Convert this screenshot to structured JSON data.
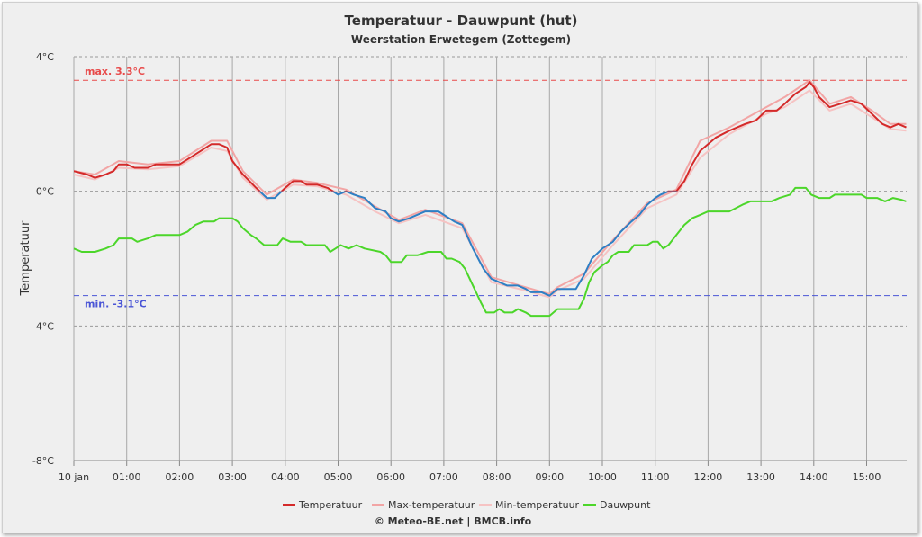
{
  "chart_data": {
    "type": "line",
    "title": "Temperatuur - Dauwpunt (hut)",
    "subtitle": "Weerstation Erwetegem (Zottegem)",
    "ylabel": "Temperatuur",
    "ylim": [
      -8,
      4
    ],
    "y_ticks": [
      "4°C",
      "0°C",
      "-4°C",
      "-8°C"
    ],
    "x_range_hours": [
      0,
      15.75
    ],
    "x_ticks": [
      "10 jan",
      "01:00",
      "02:00",
      "03:00",
      "04:00",
      "05:00",
      "06:00",
      "07:00",
      "08:00",
      "09:00",
      "10:00",
      "11:00",
      "12:00",
      "13:00",
      "14:00",
      "15:00"
    ],
    "grid": true,
    "legend_position": "bottom-center",
    "plot_lines": {
      "max": {
        "label": "max. 3.3°C",
        "value": 3.3,
        "color": "#e84a4a"
      },
      "min": {
        "label": "min. -3.1°C",
        "value": -3.1,
        "color": "#4a55d6"
      }
    },
    "series": [
      {
        "name": "Temperatuur",
        "color": "#d42a2a",
        "color_below_zero": "#2e7fc4",
        "points": [
          [
            0,
            0.6
          ],
          [
            0.25,
            0.5
          ],
          [
            0.4,
            0.4
          ],
          [
            0.6,
            0.5
          ],
          [
            0.75,
            0.6
          ],
          [
            0.85,
            0.8
          ],
          [
            1.0,
            0.8
          ],
          [
            1.15,
            0.7
          ],
          [
            1.4,
            0.7
          ],
          [
            1.55,
            0.8
          ],
          [
            2.0,
            0.8
          ],
          [
            2.2,
            1.0
          ],
          [
            2.4,
            1.2
          ],
          [
            2.6,
            1.4
          ],
          [
            2.75,
            1.4
          ],
          [
            2.9,
            1.3
          ],
          [
            3.0,
            0.9
          ],
          [
            3.2,
            0.5
          ],
          [
            3.45,
            0.1
          ],
          [
            3.65,
            -0.2
          ],
          [
            3.8,
            -0.2
          ],
          [
            4.0,
            0.1
          ],
          [
            4.15,
            0.3
          ],
          [
            4.3,
            0.3
          ],
          [
            4.4,
            0.2
          ],
          [
            4.6,
            0.2
          ],
          [
            4.8,
            0.1
          ],
          [
            5.0,
            -0.1
          ],
          [
            5.15,
            0.0
          ],
          [
            5.3,
            -0.1
          ],
          [
            5.5,
            -0.2
          ],
          [
            5.7,
            -0.5
          ],
          [
            5.9,
            -0.6
          ],
          [
            6.0,
            -0.8
          ],
          [
            6.15,
            -0.9
          ],
          [
            6.35,
            -0.8
          ],
          [
            6.65,
            -0.6
          ],
          [
            6.9,
            -0.6
          ],
          [
            7.0,
            -0.7
          ],
          [
            7.2,
            -0.9
          ],
          [
            7.35,
            -1.0
          ],
          [
            7.55,
            -1.7
          ],
          [
            7.75,
            -2.3
          ],
          [
            7.9,
            -2.6
          ],
          [
            8.05,
            -2.7
          ],
          [
            8.2,
            -2.8
          ],
          [
            8.4,
            -2.8
          ],
          [
            8.55,
            -2.9
          ],
          [
            8.65,
            -3.0
          ],
          [
            8.85,
            -3.0
          ],
          [
            9.0,
            -3.1
          ],
          [
            9.15,
            -2.9
          ],
          [
            9.5,
            -2.9
          ],
          [
            9.65,
            -2.5
          ],
          [
            9.8,
            -2.0
          ],
          [
            10.0,
            -1.7
          ],
          [
            10.2,
            -1.5
          ],
          [
            10.35,
            -1.2
          ],
          [
            10.55,
            -0.9
          ],
          [
            10.7,
            -0.7
          ],
          [
            10.85,
            -0.4
          ],
          [
            11.0,
            -0.2
          ],
          [
            11.1,
            -0.1
          ],
          [
            11.25,
            0.0
          ],
          [
            11.4,
            0.0
          ],
          [
            11.55,
            0.3
          ],
          [
            11.7,
            0.8
          ],
          [
            11.85,
            1.2
          ],
          [
            12.0,
            1.4
          ],
          [
            12.15,
            1.6
          ],
          [
            12.4,
            1.8
          ],
          [
            12.7,
            2.0
          ],
          [
            12.9,
            2.1
          ],
          [
            13.1,
            2.4
          ],
          [
            13.3,
            2.4
          ],
          [
            13.45,
            2.6
          ],
          [
            13.65,
            2.9
          ],
          [
            13.85,
            3.1
          ],
          [
            13.92,
            3.25
          ],
          [
            14.0,
            3.1
          ],
          [
            14.1,
            2.8
          ],
          [
            14.3,
            2.5
          ],
          [
            14.5,
            2.6
          ],
          [
            14.7,
            2.7
          ],
          [
            14.9,
            2.6
          ],
          [
            15.1,
            2.3
          ],
          [
            15.3,
            2.0
          ],
          [
            15.45,
            1.9
          ],
          [
            15.6,
            2.0
          ],
          [
            15.75,
            1.9
          ]
        ]
      },
      {
        "name": "Max-temperatuur",
        "color": "#f2a5a5",
        "points": [
          [
            0,
            0.6
          ],
          [
            0.4,
            0.5
          ],
          [
            0.85,
            0.9
          ],
          [
            1.4,
            0.8
          ],
          [
            2.0,
            0.9
          ],
          [
            2.6,
            1.5
          ],
          [
            2.9,
            1.5
          ],
          [
            3.2,
            0.6
          ],
          [
            3.65,
            -0.1
          ],
          [
            4.15,
            0.35
          ],
          [
            4.6,
            0.25
          ],
          [
            5.15,
            0.05
          ],
          [
            5.7,
            -0.45
          ],
          [
            6.15,
            -0.85
          ],
          [
            6.65,
            -0.55
          ],
          [
            7.35,
            -0.95
          ],
          [
            7.9,
            -2.55
          ],
          [
            8.55,
            -2.85
          ],
          [
            9.0,
            -3.05
          ],
          [
            9.15,
            -2.85
          ],
          [
            9.65,
            -2.45
          ],
          [
            10.2,
            -1.45
          ],
          [
            10.85,
            -0.35
          ],
          [
            11.4,
            0.05
          ],
          [
            11.85,
            1.5
          ],
          [
            12.4,
            1.9
          ],
          [
            13.1,
            2.5
          ],
          [
            13.45,
            2.8
          ],
          [
            13.92,
            3.3
          ],
          [
            14.3,
            2.6
          ],
          [
            14.7,
            2.8
          ],
          [
            15.1,
            2.4
          ],
          [
            15.45,
            2.0
          ],
          [
            15.75,
            2.0
          ]
        ]
      },
      {
        "name": "Min-temperatuur",
        "color": "#f6c3c3",
        "points": [
          [
            0,
            0.5
          ],
          [
            0.4,
            0.35
          ],
          [
            0.85,
            0.7
          ],
          [
            1.4,
            0.65
          ],
          [
            2.0,
            0.75
          ],
          [
            2.6,
            1.3
          ],
          [
            2.9,
            1.2
          ],
          [
            3.2,
            0.4
          ],
          [
            3.65,
            -0.25
          ],
          [
            4.15,
            0.2
          ],
          [
            4.6,
            0.15
          ],
          [
            5.15,
            -0.1
          ],
          [
            5.7,
            -0.6
          ],
          [
            6.15,
            -0.95
          ],
          [
            6.65,
            -0.7
          ],
          [
            7.35,
            -1.1
          ],
          [
            7.9,
            -2.7
          ],
          [
            8.55,
            -2.95
          ],
          [
            9.0,
            -3.15
          ],
          [
            9.15,
            -2.95
          ],
          [
            9.65,
            -2.6
          ],
          [
            10.2,
            -1.6
          ],
          [
            10.85,
            -0.5
          ],
          [
            11.4,
            -0.1
          ],
          [
            11.85,
            1.0
          ],
          [
            12.4,
            1.7
          ],
          [
            13.1,
            2.3
          ],
          [
            13.45,
            2.5
          ],
          [
            13.92,
            3.0
          ],
          [
            14.3,
            2.4
          ],
          [
            14.7,
            2.6
          ],
          [
            15.1,
            2.2
          ],
          [
            15.45,
            1.85
          ],
          [
            15.75,
            1.8
          ]
        ]
      },
      {
        "name": "Dauwpunt",
        "color": "#4cd62a",
        "points": [
          [
            0,
            -1.7
          ],
          [
            0.15,
            -1.8
          ],
          [
            0.4,
            -1.8
          ],
          [
            0.6,
            -1.7
          ],
          [
            0.75,
            -1.6
          ],
          [
            0.85,
            -1.4
          ],
          [
            1.1,
            -1.4
          ],
          [
            1.2,
            -1.5
          ],
          [
            1.4,
            -1.4
          ],
          [
            1.55,
            -1.3
          ],
          [
            2.0,
            -1.3
          ],
          [
            2.15,
            -1.2
          ],
          [
            2.3,
            -1.0
          ],
          [
            2.45,
            -0.9
          ],
          [
            2.65,
            -0.9
          ],
          [
            2.75,
            -0.8
          ],
          [
            3.0,
            -0.8
          ],
          [
            3.1,
            -0.9
          ],
          [
            3.2,
            -1.1
          ],
          [
            3.35,
            -1.3
          ],
          [
            3.45,
            -1.4
          ],
          [
            3.6,
            -1.6
          ],
          [
            3.85,
            -1.6
          ],
          [
            3.95,
            -1.4
          ],
          [
            4.1,
            -1.5
          ],
          [
            4.3,
            -1.5
          ],
          [
            4.4,
            -1.6
          ],
          [
            4.75,
            -1.6
          ],
          [
            4.85,
            -1.8
          ],
          [
            4.95,
            -1.7
          ],
          [
            5.05,
            -1.6
          ],
          [
            5.2,
            -1.7
          ],
          [
            5.35,
            -1.6
          ],
          [
            5.5,
            -1.7
          ],
          [
            5.8,
            -1.8
          ],
          [
            5.9,
            -1.9
          ],
          [
            6.0,
            -2.1
          ],
          [
            6.2,
            -2.1
          ],
          [
            6.3,
            -1.9
          ],
          [
            6.5,
            -1.9
          ],
          [
            6.7,
            -1.8
          ],
          [
            6.95,
            -1.8
          ],
          [
            7.05,
            -2.0
          ],
          [
            7.15,
            -2.0
          ],
          [
            7.3,
            -2.1
          ],
          [
            7.4,
            -2.3
          ],
          [
            7.55,
            -2.8
          ],
          [
            7.7,
            -3.3
          ],
          [
            7.8,
            -3.6
          ],
          [
            7.95,
            -3.6
          ],
          [
            8.05,
            -3.5
          ],
          [
            8.15,
            -3.6
          ],
          [
            8.3,
            -3.6
          ],
          [
            8.4,
            -3.5
          ],
          [
            8.55,
            -3.6
          ],
          [
            8.65,
            -3.7
          ],
          [
            9.0,
            -3.7
          ],
          [
            9.15,
            -3.5
          ],
          [
            9.55,
            -3.5
          ],
          [
            9.65,
            -3.2
          ],
          [
            9.75,
            -2.7
          ],
          [
            9.85,
            -2.4
          ],
          [
            10.0,
            -2.2
          ],
          [
            10.1,
            -2.1
          ],
          [
            10.2,
            -1.9
          ],
          [
            10.3,
            -1.8
          ],
          [
            10.5,
            -1.8
          ],
          [
            10.6,
            -1.6
          ],
          [
            10.85,
            -1.6
          ],
          [
            10.95,
            -1.5
          ],
          [
            11.05,
            -1.5
          ],
          [
            11.15,
            -1.7
          ],
          [
            11.25,
            -1.6
          ],
          [
            11.4,
            -1.3
          ],
          [
            11.55,
            -1.0
          ],
          [
            11.7,
            -0.8
          ],
          [
            11.85,
            -0.7
          ],
          [
            12.0,
            -0.6
          ],
          [
            12.4,
            -0.6
          ],
          [
            12.65,
            -0.4
          ],
          [
            12.8,
            -0.3
          ],
          [
            13.2,
            -0.3
          ],
          [
            13.35,
            -0.2
          ],
          [
            13.55,
            -0.1
          ],
          [
            13.65,
            0.1
          ],
          [
            13.85,
            0.1
          ],
          [
            13.95,
            -0.1
          ],
          [
            14.1,
            -0.2
          ],
          [
            14.3,
            -0.2
          ],
          [
            14.4,
            -0.1
          ],
          [
            14.9,
            -0.1
          ],
          [
            15.0,
            -0.2
          ],
          [
            15.2,
            -0.2
          ],
          [
            15.35,
            -0.3
          ],
          [
            15.5,
            -0.2
          ],
          [
            15.65,
            -0.25
          ],
          [
            15.75,
            -0.3
          ]
        ]
      }
    ],
    "credit_prefix": "© Meteo-BE.net",
    "credit_separator": "|",
    "credit_suffix": "BMCB.info"
  }
}
